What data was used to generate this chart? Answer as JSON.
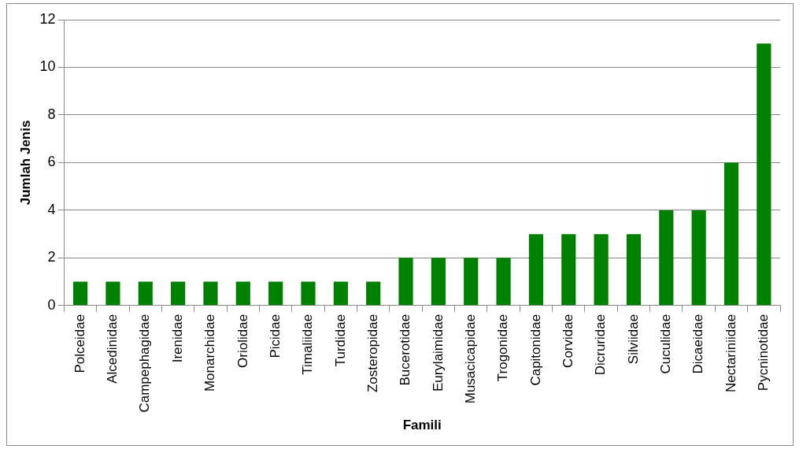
{
  "chart_data": {
    "type": "bar",
    "xlabel": "Famili",
    "ylabel": "Jumlah Jenis",
    "categories": [
      "Polceidae",
      "Alcedinidae",
      "Campephagidae",
      "Irenidae",
      "Monarchidae",
      "Oriolidae",
      "Picidae",
      "Timaliidae",
      "Turdidae",
      "Zosteropidae",
      "Bucerotidae",
      "Eurylaimidae",
      "Musacicapidae",
      "Trogonidae",
      "Capitonidae",
      "Corvidae",
      "Dicruridae",
      "Silviidae",
      "Cuculidae",
      "Dicaeidae",
      "Nectariniidae",
      "Pycninotidae"
    ],
    "values": [
      1,
      1,
      1,
      1,
      1,
      1,
      1,
      1,
      1,
      1,
      2,
      2,
      2,
      2,
      3,
      3,
      3,
      3,
      4,
      4,
      6,
      11
    ],
    "color": "#008000",
    "ylim": [
      0,
      12
    ],
    "yticks": [
      0,
      2,
      4,
      6,
      8,
      10,
      12
    ],
    "grid": "y",
    "legend": false
  }
}
